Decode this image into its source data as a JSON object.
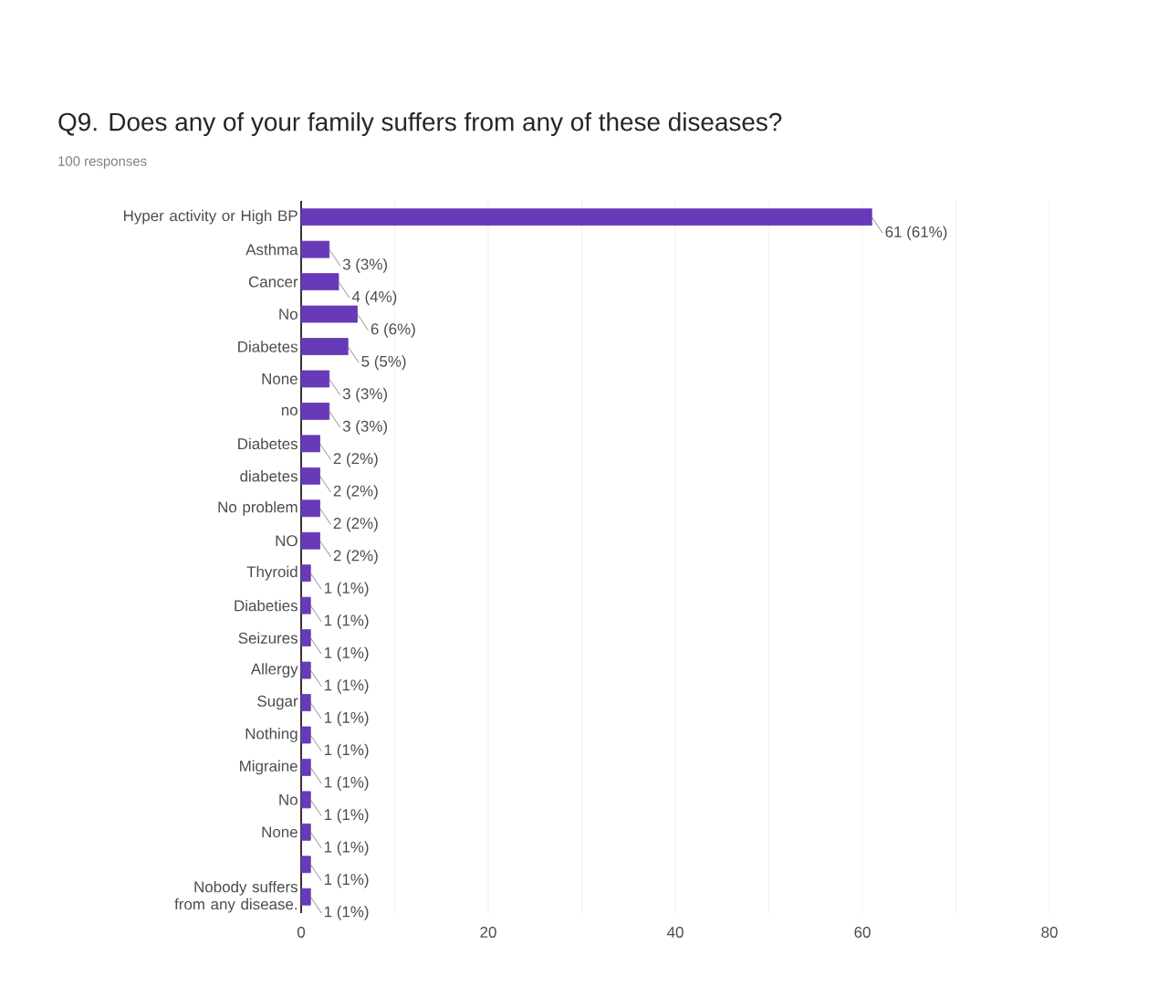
{
  "chart_data": {
    "type": "bar",
    "orientation": "horizontal",
    "title": "Q9. Does any of your family suffers from any of these diseases?",
    "subtitle": "100 responses",
    "categories": [
      "Hyper activity or High BP",
      "Asthma",
      "Cancer",
      "No",
      "Diabetes",
      "None",
      "no",
      "Diabetes",
      "diabetes",
      "No problem",
      "NO",
      "Thyroid",
      "Diabeties",
      "Seizures",
      "Allergy",
      "Sugar",
      "Nothing",
      "Migraine",
      "No",
      "None",
      null,
      "Nobody suffers from any disease."
    ],
    "values": [
      61,
      3,
      4,
      6,
      5,
      3,
      3,
      2,
      2,
      2,
      2,
      1,
      1,
      1,
      1,
      1,
      1,
      1,
      1,
      1,
      1,
      1
    ],
    "value_labels": [
      "61 (61%)",
      "3 (3%)",
      "4 (4%)",
      "6 (6%)",
      "5 (5%)",
      "3 (3%)",
      "3 (3%)",
      "2 (2%)",
      "2 (2%)",
      "2 (2%)",
      "2 (2%)",
      "1 (1%)",
      "1 (1%)",
      "1 (1%)",
      "1 (1%)",
      "1 (1%)",
      "1 (1%)",
      "1 (1%)",
      "1 (1%)",
      "1 (1%)",
      "1 (1%)",
      "1 (1%)"
    ],
    "color": "#673ab7",
    "xlim": [
      0,
      80
    ],
    "xticks": [
      0,
      {
        "value": 10,
        "label": null
      },
      20,
      {
        "value": 30,
        "label": null
      },
      40,
      {
        "value": 50,
        "label": null
      },
      60,
      {
        "value": 70,
        "label": null
      },
      80
    ],
    "grid": "x"
  }
}
